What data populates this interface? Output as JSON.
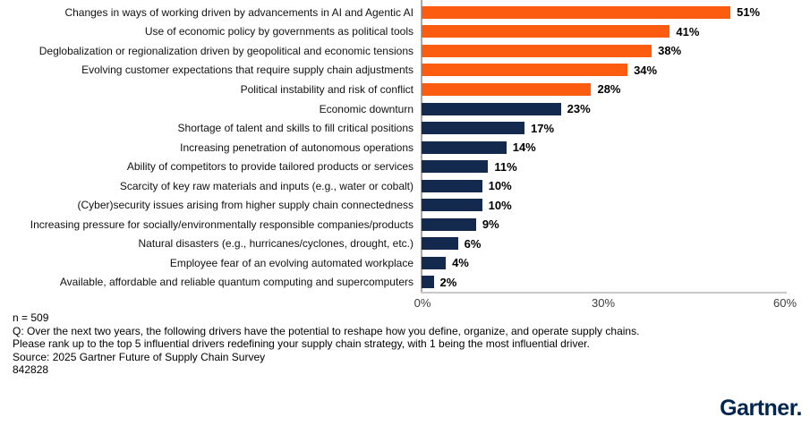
{
  "chart_data": {
    "type": "bar",
    "orientation": "horizontal",
    "title": "",
    "xlabel": "",
    "ylabel": "",
    "xlim": [
      0,
      60
    ],
    "x_ticks": [
      "0%",
      "30%",
      "60%"
    ],
    "x_tick_values": [
      0,
      30,
      60
    ],
    "grid": false,
    "legend": "none",
    "palette": {
      "highlight_orange": "#FB5C10",
      "navy": "#13294E"
    },
    "bars": [
      {
        "label": "Changes in ways of working driven by advancements in AI and Agentic AI",
        "value": 51,
        "value_label": "51%",
        "color": "highlight_orange"
      },
      {
        "label": "Use of economic policy by governments as political tools",
        "value": 41,
        "value_label": "41%",
        "color": "highlight_orange"
      },
      {
        "label": "Deglobalization or regionalization driven by geopolitical and economic tensions",
        "value": 38,
        "value_label": "38%",
        "color": "highlight_orange"
      },
      {
        "label": "Evolving customer expectations that require supply chain adjustments",
        "value": 34,
        "value_label": "34%",
        "color": "highlight_orange"
      },
      {
        "label": "Political instability and risk of conflict",
        "value": 28,
        "value_label": "28%",
        "color": "highlight_orange"
      },
      {
        "label": "Economic downturn",
        "value": 23,
        "value_label": "23%",
        "color": "navy"
      },
      {
        "label": "Shortage of talent and skills to fill critical positions",
        "value": 17,
        "value_label": "17%",
        "color": "navy"
      },
      {
        "label": "Increasing penetration of autonomous operations",
        "value": 14,
        "value_label": "14%",
        "color": "navy"
      },
      {
        "label": "Ability of competitors to provide tailored products or services",
        "value": 11,
        "value_label": "11%",
        "color": "navy"
      },
      {
        "label": "Scarcity of key raw materials and inputs (e.g., water or cobalt)",
        "value": 10,
        "value_label": "10%",
        "color": "navy"
      },
      {
        "label": "(Cyber)security issues arising from higher supply chain connectedness",
        "value": 10,
        "value_label": "10%",
        "color": "navy"
      },
      {
        "label": "Increasing pressure for socially/environmentally responsible companies/products",
        "value": 9,
        "value_label": "9%",
        "color": "navy"
      },
      {
        "label": "Natural disasters (e.g., hurricanes/cyclones, drought, etc.)",
        "value": 6,
        "value_label": "6%",
        "color": "navy"
      },
      {
        "label": "Employee fear of an evolving automated workplace",
        "value": 4,
        "value_label": "4%",
        "color": "navy"
      },
      {
        "label": "Available, affordable and reliable quantum computing and supercomputers",
        "value": 2,
        "value_label": "2%",
        "color": "navy"
      }
    ]
  },
  "footnotes": {
    "n": "n = 509",
    "question_line1": "Q: Over the next two years, the following drivers have the potential to reshape how you define, organize, and operate supply chains.",
    "question_line2": "Please rank up to the top 5 influential drivers redefining your supply chain strategy, with 1 being the most influential driver.",
    "source": "Source: 2025 Gartner Future of Supply Chain Survey",
    "doc_id": "842828"
  },
  "branding": {
    "logo_text": "Gartner.",
    "logo_color": "#00264E"
  }
}
